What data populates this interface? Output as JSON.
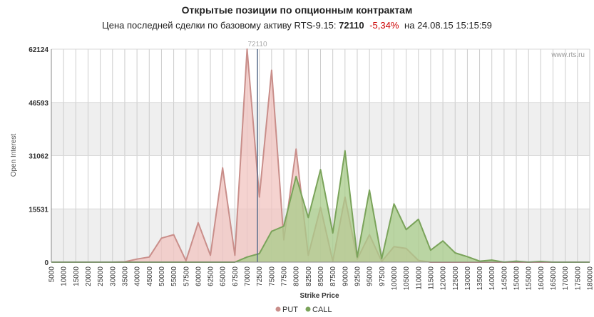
{
  "header": {
    "title": "Открытые позиции по опционным контрактам",
    "subtitle_prefix": "Цена последней сделки по базовому активу RTS-9.15:",
    "price": "72110",
    "change": "-5,34%",
    "date_text": "на 24.08.15 15:15:59"
  },
  "watermark": "www.rts.ru",
  "colors": {
    "put_fill": "#f2c4c0",
    "put_line": "#c98e8a",
    "call_fill": "#a8cc8a",
    "call_line": "#7aa35a",
    "marker": "#5a6e8c",
    "band": "#efefef",
    "grid": "#cccccc"
  },
  "chart_data": {
    "type": "area",
    "title": "",
    "xlabel": "Strike Price",
    "ylabel": "Open Interest",
    "x_tick_labels": [
      "5000",
      "10000",
      "15000",
      "20000",
      "25000",
      "30000",
      "35000",
      "40000",
      "45000",
      "50000",
      "55000",
      "57500",
      "60000",
      "62500",
      "65000",
      "67500",
      "70000",
      "72500",
      "75000",
      "77500",
      "80000",
      "82500",
      "85000",
      "87500",
      "90000",
      "92500",
      "95000",
      "97500",
      "100000",
      "105000",
      "110000",
      "115000",
      "120000",
      "125000",
      "130000",
      "135000",
      "140000",
      "145000",
      "150000",
      "155000",
      "160000",
      "165000",
      "170000",
      "175000",
      "180000"
    ],
    "y_ticks": [
      0,
      15531,
      31062,
      46593,
      62124
    ],
    "ylim": [
      0,
      62124
    ],
    "marker": {
      "value": "72110",
      "label": "72110",
      "index": 16.844
    },
    "grid": true,
    "legend_position": "bottom-center",
    "series": [
      {
        "name": "PUT",
        "values": [
          0,
          0,
          0,
          0,
          0,
          0,
          100,
          900,
          1500,
          7000,
          8000,
          400,
          11500,
          2000,
          27500,
          2000,
          62124,
          19000,
          56000,
          6500,
          33000,
          2000,
          16000,
          300,
          19000,
          900,
          8000,
          200,
          4500,
          4000,
          500,
          0,
          0,
          0,
          0,
          0,
          0,
          0,
          0,
          0,
          0,
          0,
          0,
          0,
          0
        ]
      },
      {
        "name": "CALL",
        "values": [
          0,
          0,
          0,
          0,
          0,
          0,
          0,
          0,
          0,
          0,
          0,
          0,
          0,
          0,
          0,
          0,
          1500,
          2500,
          9000,
          10500,
          25000,
          13000,
          27000,
          8500,
          32500,
          1500,
          21000,
          1000,
          17000,
          9500,
          12500,
          3500,
          6200,
          2700,
          1600,
          300,
          600,
          0,
          300,
          0,
          200,
          0,
          0,
          0,
          0
        ]
      }
    ]
  }
}
